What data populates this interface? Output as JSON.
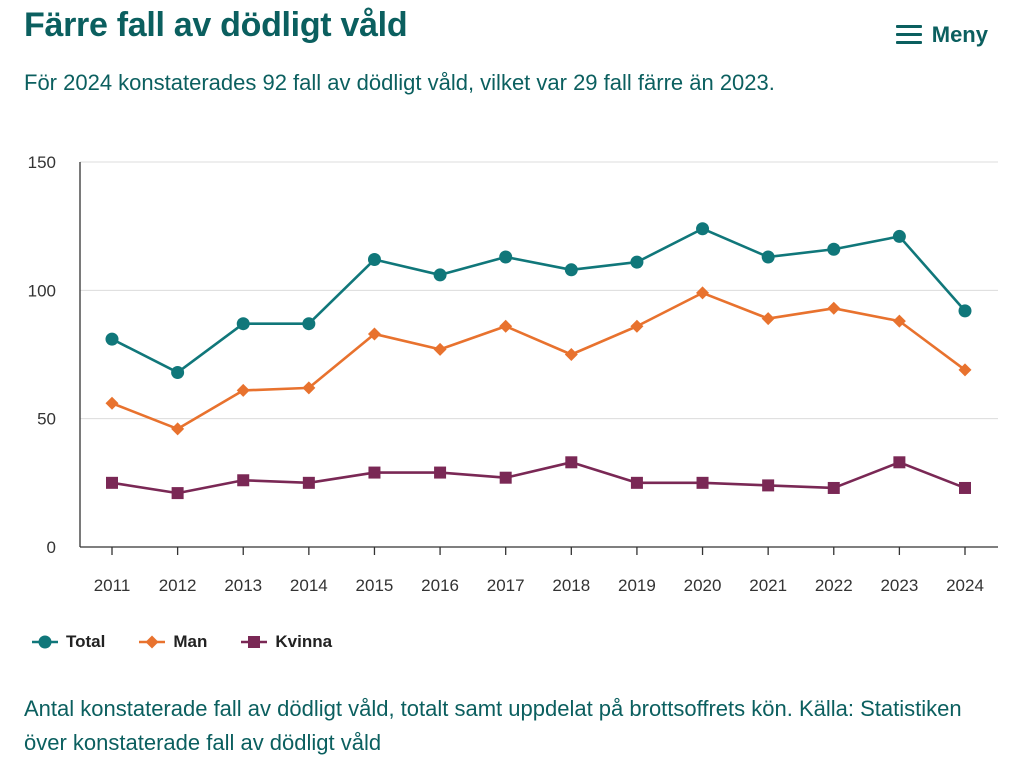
{
  "header": {
    "title": "Färre fall av dödligt våld",
    "menu_label": "Meny",
    "subtitle": "För 2024 konstaterades 92 fall av dödligt våld, vilket var 29 fall färre än 2023."
  },
  "caption": "Antal konstaterade fall av dödligt våld, totalt samt uppdelat på brottsoffrets kön. Källa: Statistiken över konstaterade fall av dödligt våld",
  "chart_data": {
    "type": "line",
    "title": "",
    "xlabel": "",
    "ylabel": "",
    "x": [
      "2011",
      "2012",
      "2013",
      "2014",
      "2015",
      "2016",
      "2017",
      "2018",
      "2019",
      "2020",
      "2021",
      "2022",
      "2023",
      "2024"
    ],
    "ylim": [
      0,
      150
    ],
    "yticks": [
      "0",
      "50",
      "100",
      "150"
    ],
    "grid": true,
    "legend_position": "bottom-left",
    "series": [
      {
        "name": "Total",
        "color": "#10777a",
        "marker": "circle",
        "values": [
          81,
          68,
          87,
          87,
          112,
          106,
          113,
          108,
          111,
          124,
          113,
          116,
          121,
          92
        ]
      },
      {
        "name": "Man",
        "color": "#e8722e",
        "marker": "diamond",
        "values": [
          56,
          46,
          61,
          62,
          83,
          77,
          86,
          75,
          86,
          99,
          89,
          93,
          88,
          69
        ]
      },
      {
        "name": "Kvinna",
        "color": "#7a2855",
        "marker": "square",
        "values": [
          25,
          21,
          26,
          25,
          29,
          29,
          27,
          33,
          25,
          25,
          24,
          23,
          33,
          23
        ]
      }
    ]
  }
}
